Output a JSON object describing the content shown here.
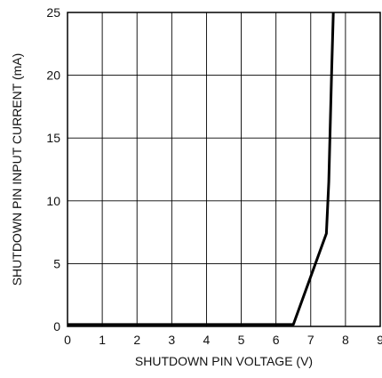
{
  "chart_data": {
    "type": "line",
    "title": "",
    "xlabel": "SHUTDOWN PIN VOLTAGE (V)",
    "ylabel": "SHUTDOWN PIN INPUT CURRENT (mA)",
    "xlim": [
      0,
      9
    ],
    "ylim": [
      0,
      25
    ],
    "x_ticks": [
      0,
      1,
      2,
      3,
      4,
      5,
      6,
      7,
      8,
      9
    ],
    "x_tick_labels": [
      "0",
      "1",
      "2",
      "3",
      "4",
      "5",
      "6",
      "7",
      "8",
      "9"
    ],
    "y_ticks": [
      0,
      5,
      10,
      15,
      20,
      25
    ],
    "y_tick_labels": [
      "0",
      "5",
      "10",
      "15",
      "20",
      "25"
    ],
    "grid": true,
    "legend": "none",
    "series": [
      {
        "color": "#000000",
        "x": [
          0,
          6.5,
          7.45,
          7.52,
          7.6,
          7.65
        ],
        "y": [
          0.15,
          0.15,
          7.4,
          11.5,
          20,
          25
        ]
      }
    ]
  }
}
